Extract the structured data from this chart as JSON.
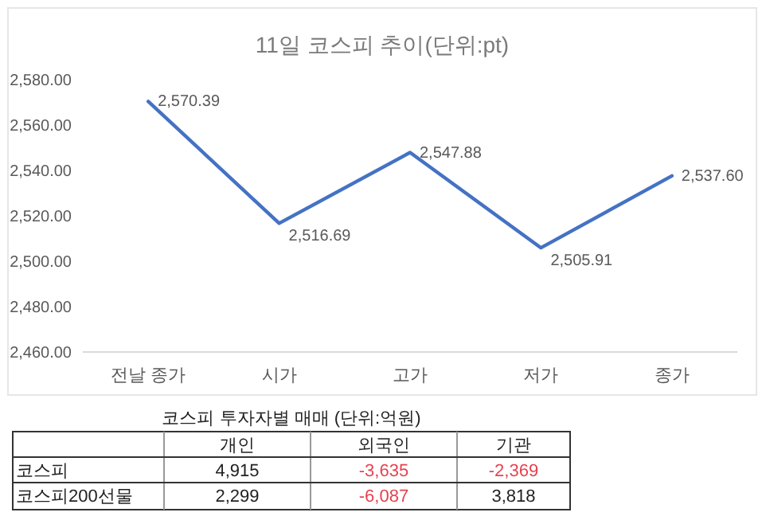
{
  "chart_data": [
    {
      "type": "line",
      "title": "11일 코스피 추이(단위:pt)",
      "categories": [
        "전날 종가",
        "시가",
        "고가",
        "저가",
        "종가"
      ],
      "series": [
        {
          "color": "#4472c4",
          "values": [
            2570.39,
            2516.69,
            2547.88,
            2505.91,
            2537.6
          ],
          "value_labels": [
            "2,570.39",
            "2,516.69",
            "2,547.88",
            "2,505.91",
            "2,537.60"
          ]
        }
      ],
      "ylim": [
        2460,
        2580
      ],
      "yticks": [
        {
          "value": 2460,
          "label": "2,460.00"
        },
        {
          "value": 2480,
          "label": "2,480.00"
        },
        {
          "value": 2500,
          "label": "2,500.00"
        },
        {
          "value": 2520,
          "label": "2,520.00"
        },
        {
          "value": 2540,
          "label": "2,540.00"
        },
        {
          "value": 2560,
          "label": "2,560.00"
        },
        {
          "value": 2580,
          "label": "2,580.00"
        }
      ],
      "grid": false,
      "marker": "none",
      "line_style": "solid"
    },
    {
      "type": "other",
      "title": "코스피 투자자별 매매 (단위:억원)",
      "categories": [
        "개인",
        "외국인",
        "기관"
      ],
      "y_categories": [
        "코스피",
        "코스피200선물"
      ],
      "cell_labels": [
        [
          "4,915",
          "-3,635",
          "-2,369"
        ],
        [
          "2,299",
          "-6,087",
          "3,818"
        ]
      ],
      "colors": [
        [
          "#222222",
          "#e8414f",
          "#e8414f"
        ],
        [
          "#222222",
          "#e8414f",
          "#222222"
        ]
      ]
    }
  ]
}
